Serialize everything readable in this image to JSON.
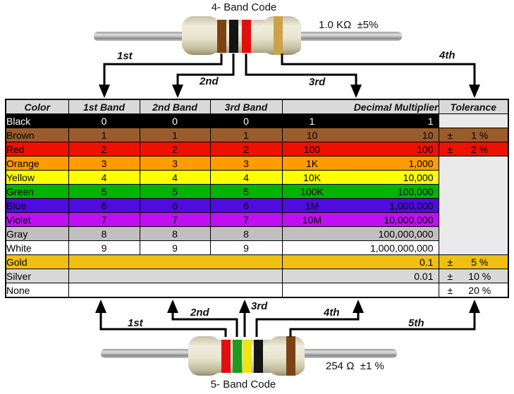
{
  "top_figure": {
    "title": "4- Band Code",
    "value_label": "1.0 KΩ  ±5%",
    "arrows": {
      "a1": "1st",
      "a2": "2nd",
      "a3": "3rd",
      "a4": "4th"
    },
    "bands": [
      {
        "name": "brown-band",
        "color": "#7b4313"
      },
      {
        "name": "black-band",
        "color": "#141414"
      },
      {
        "name": "red-band",
        "color": "#df1010"
      },
      {
        "name": "gold-band",
        "color": "#cea24b"
      }
    ]
  },
  "bottom_figure": {
    "title": "5- Band Code",
    "value_label": "254 Ω  ±1 %",
    "arrows": {
      "a1": "1st",
      "a2": "2nd",
      "a3": "3rd",
      "a4": "4th",
      "a5": "5th"
    },
    "bands": [
      {
        "name": "red-band",
        "color": "#df1010"
      },
      {
        "name": "green-band",
        "color": "#1c9c1c"
      },
      {
        "name": "yellow-band",
        "color": "#efe414"
      },
      {
        "name": "black-band",
        "color": "#141414"
      },
      {
        "name": "brown-band",
        "color": "#7b4313"
      }
    ]
  },
  "table": {
    "headers": [
      "Color",
      "1st Band",
      "2nd Band",
      "3rd Band",
      "Decimal Multiplier",
      "Tolerance"
    ],
    "header_bg": "#d9d9d9",
    "empty_tolerance_bg": "#eaeaea",
    "rows": [
      {
        "color": "Black",
        "bg": "#000000",
        "fg": "#ffffff",
        "b1": "0",
        "b2": "0",
        "b3": "0",
        "mult_short": "1",
        "mult_long": "1",
        "tol_sign": "",
        "tol_value": ""
      },
      {
        "color": "Brown",
        "bg": "#9a5c2b",
        "fg": "#000000",
        "b1": "1",
        "b2": "1",
        "b3": "1",
        "mult_short": "10",
        "mult_long": "10",
        "tol_sign": "±",
        "tol_value": "1 %"
      },
      {
        "color": "Red",
        "bg": "#ee1100",
        "fg": "#000000",
        "b1": "2",
        "b2": "2",
        "b3": "2",
        "mult_short": "100",
        "mult_long": "100",
        "tol_sign": "±",
        "tol_value": "2 %"
      },
      {
        "color": "Orange",
        "bg": "#ff9c00",
        "fg": "#000000",
        "b1": "3",
        "b2": "3",
        "b3": "3",
        "mult_short": "1K",
        "mult_long": "1,000",
        "tol_sign": "",
        "tol_value": ""
      },
      {
        "color": "Yellow",
        "bg": "#ffff00",
        "fg": "#000000",
        "b1": "4",
        "b2": "4",
        "b3": "4",
        "mult_short": "10K",
        "mult_long": "10,000",
        "tol_sign": "",
        "tol_value": ""
      },
      {
        "color": "Green",
        "bg": "#00b400",
        "fg": "#000000",
        "b1": "5",
        "b2": "5",
        "b3": "5",
        "mult_short": "100K",
        "mult_long": "100,000",
        "tol_sign": "",
        "tol_value": ""
      },
      {
        "color": "Blue",
        "bg": "#4f0be0",
        "fg": "#000000",
        "b1": "6",
        "b2": "6",
        "b3": "6",
        "mult_short": "1M",
        "mult_long": "1,000,000",
        "tol_sign": "",
        "tol_value": ""
      },
      {
        "color": "Violet",
        "bg": "#be10f2",
        "fg": "#000000",
        "b1": "7",
        "b2": "7",
        "b3": "7",
        "mult_short": "10M",
        "mult_long": "10,000,000",
        "tol_sign": "",
        "tol_value": ""
      },
      {
        "color": "Gray",
        "bg": "#c0c0c0",
        "fg": "#000000",
        "b1": "8",
        "b2": "8",
        "b3": "8",
        "mult_short": "",
        "mult_long": "100,000,000",
        "tol_sign": "",
        "tol_value": ""
      },
      {
        "color": "White",
        "bg": "#ffffff",
        "fg": "#000000",
        "b1": "9",
        "b2": "9",
        "b3": "9",
        "mult_short": "",
        "mult_long": "1,000,000,000",
        "tol_sign": "",
        "tol_value": ""
      },
      {
        "color": "Gold",
        "bg": "#f0c010",
        "fg": "#000000",
        "mult_short": "",
        "mult_long": "0.1",
        "tol_sign": "±",
        "tol_value": "5 %"
      },
      {
        "color": "Silver",
        "bg": "#d8d8d8",
        "fg": "#000000",
        "mult_short": "",
        "mult_long": "0.01",
        "tol_sign": "±",
        "tol_value": "10 %"
      },
      {
        "color": "None",
        "bg": "#ffffff",
        "fg": "#000000",
        "mult_short": "",
        "mult_long": "",
        "tol_sign": "±",
        "tol_value": "20 %"
      }
    ]
  }
}
